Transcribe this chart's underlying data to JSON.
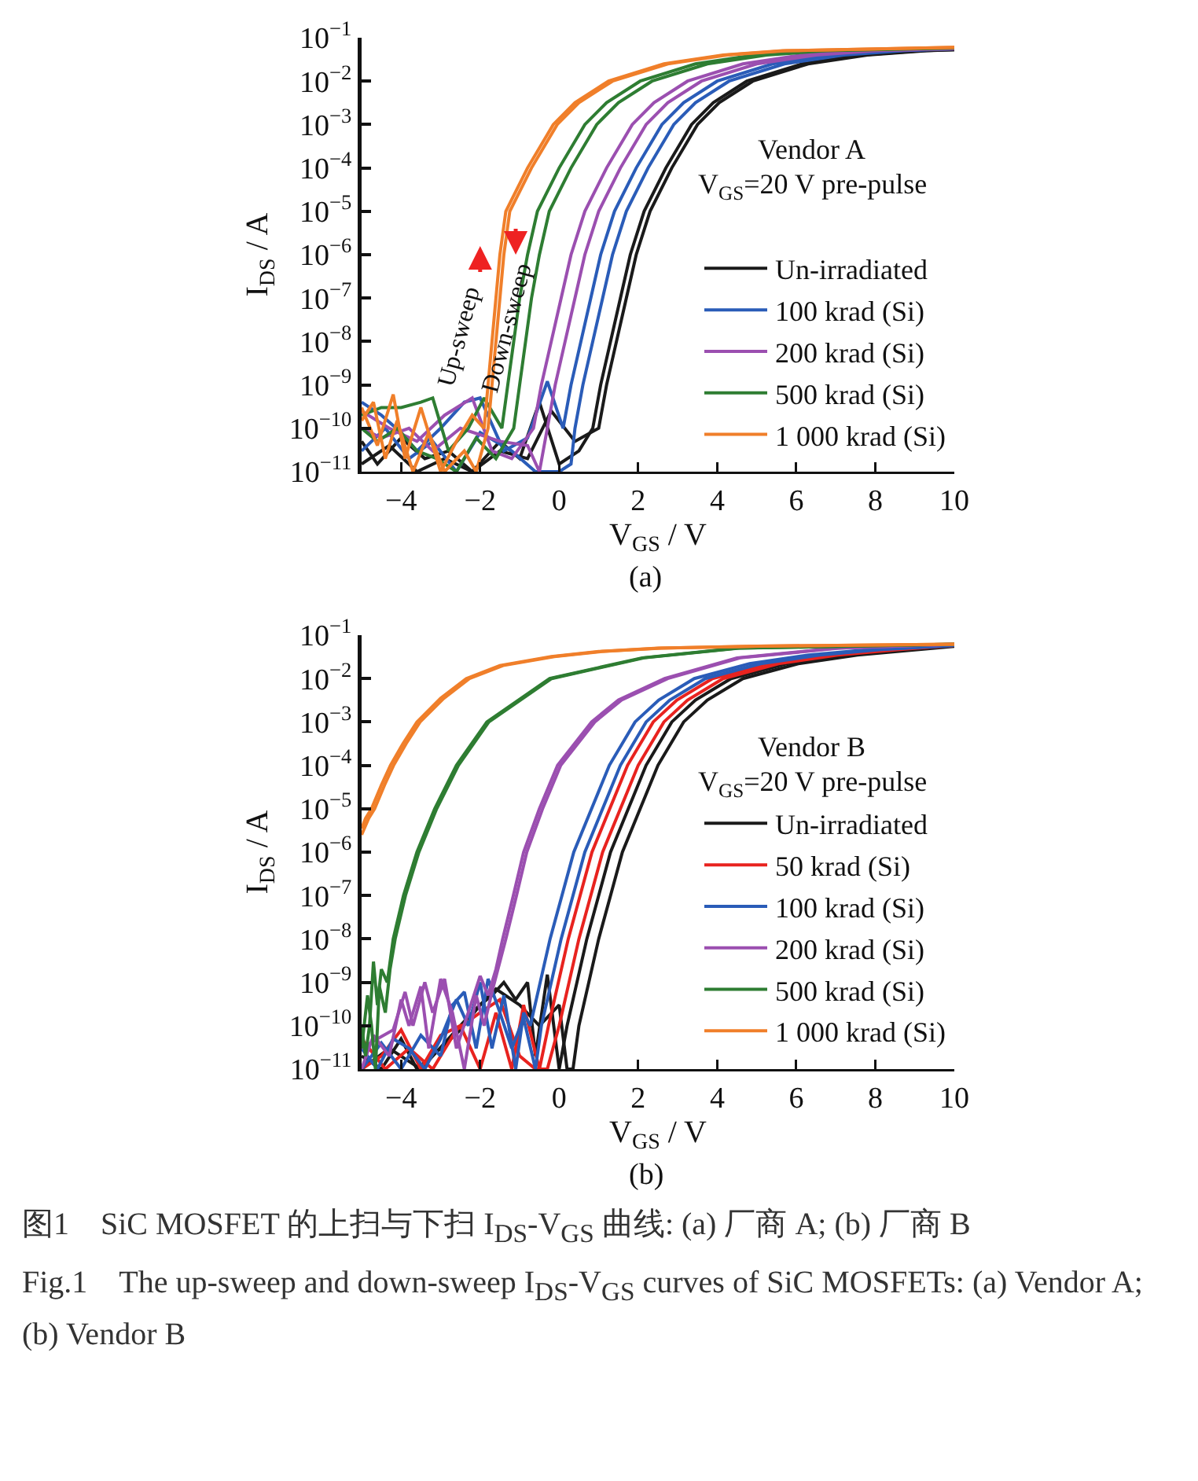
{
  "chart_data": [
    {
      "type": "line",
      "xlabel": "V$_{GS}$ / V",
      "ylabel": "I$_{DS}$ / A",
      "log": "y",
      "legend": "bottom right",
      "xlim": [
        -5,
        10
      ],
      "ylim": [
        1e-11,
        0.1
      ],
      "xticks": [
        -4,
        -2,
        0,
        2,
        4,
        6,
        8,
        10
      ],
      "yticks": [
        {
          "value": 1e-11,
          "label": "10$^{−11}$"
        },
        {
          "value": 1e-10,
          "label": "10$^{−10}$"
        },
        {
          "value": 1e-09,
          "label": "10$^{−9}$"
        },
        {
          "value": 1e-08,
          "label": "10$^{−8}$"
        },
        {
          "value": 1e-07,
          "label": "10$^{−7}$"
        },
        {
          "value": 1e-06,
          "label": "10$^{−6}$"
        },
        {
          "value": 1e-05,
          "label": "10$^{−5}$"
        },
        {
          "value": 0.0001,
          "label": "10$^{−4}$"
        },
        {
          "value": 0.001,
          "label": "10$^{−3}$"
        },
        {
          "value": 0.01,
          "label": "10$^{−2}$"
        },
        {
          "value": 0.1,
          "label": "10$^{−1}$"
        }
      ],
      "annotations": [
        "Vendor A",
        "V$_{GS}$=20 V pre-pulse",
        "(a)",
        "Up-sweep",
        "Down-sweep"
      ],
      "series": [
        {
          "name": "Un-irradiated",
          "color": "#1a1a1a",
          "x": [
            -5,
            -4.6,
            -4,
            -3.4,
            -2.8,
            -2.2,
            -1.5,
            -1,
            -0.5,
            0,
            0.5,
            0.85,
            1.05,
            1.3,
            1.55,
            1.8,
            2.15,
            2.7,
            3.35,
            3.9,
            4.75,
            6.15,
            7.65,
            9.15,
            10
          ],
          "values": [
            5e-11,
            1.5e-11,
            6e-11,
            2e-11,
            3e-11,
            1e-11,
            5e-11,
            2e-11,
            4e-10,
            1.5e-11,
            3e-11,
            1e-10,
            1e-09,
            1e-08,
            1e-07,
            1e-06,
            1e-05,
            0.0001,
            0.001,
            0.0032,
            0.01,
            0.025,
            0.04,
            0.05,
            0.053
          ]
        },
        {
          "color": "#1a1a1a",
          "x": [
            -5,
            -4.3,
            -3.6,
            -2.9,
            -2.2,
            -1.5,
            -0.8,
            -0.2,
            0.4,
            0.8,
            1,
            1.2,
            1.45,
            1.7,
            1.95,
            2.3,
            2.85,
            3.5,
            4.05,
            4.9,
            6.3,
            7.8,
            9.3,
            10
          ],
          "values": [
            1.5e-11,
            4e-11,
            1e-11,
            2e-11,
            1e-11,
            3e-11,
            2e-11,
            2.5e-10,
            5e-11,
            8e-11,
            1e-10,
            1e-09,
            1e-08,
            1e-07,
            1e-06,
            1e-05,
            0.0001,
            0.001,
            0.0032,
            0.01,
            0.025,
            0.04,
            0.05,
            0.053
          ]
        },
        {
          "name": "100 krad (Si)",
          "color": "#2a5cb8",
          "x": [
            -5,
            -4.5,
            -4,
            -3.6,
            -3,
            -2.4,
            -2,
            -1.4,
            -0.8,
            -0.3,
            0.1,
            0.3,
            0.55,
            0.8,
            1.05,
            1.4,
            1.95,
            2.6,
            3.15,
            4,
            5.4,
            6.9,
            8.4,
            10
          ],
          "values": [
            4e-10,
            2e-10,
            8e-11,
            3e-11,
            1e-10,
            4e-10,
            5e-10,
            3e-11,
            6e-11,
            1.2e-09,
            1e-10,
            1e-09,
            1e-08,
            1e-07,
            1e-06,
            1e-05,
            0.0001,
            0.001,
            0.0032,
            0.01,
            0.025,
            0.04,
            0.05,
            0.056
          ]
        },
        {
          "color": "#2a5cb8",
          "x": [
            -5,
            -4.4,
            -3.8,
            -3.2,
            -2.6,
            -2,
            -1.2,
            -0.6,
            0,
            0.3,
            0.4,
            0.6,
            0.85,
            1.1,
            1.35,
            1.7,
            2.25,
            2.9,
            3.45,
            4.3,
            5.7,
            7.2,
            8.7,
            10
          ],
          "values": [
            3e-11,
            1e-10,
            2e-11,
            5e-11,
            1e-11,
            8e-11,
            3e-11,
            1e-11,
            1e-11,
            1.5e-11,
            1e-10,
            1e-09,
            1e-08,
            1e-07,
            1e-06,
            1e-05,
            0.0001,
            0.001,
            0.0032,
            0.01,
            0.025,
            0.04,
            0.05,
            0.056
          ]
        },
        {
          "name": "200 krad (Si)",
          "color": "#9b4fb0",
          "x": [
            -5,
            -4.3,
            -3.6,
            -2.9,
            -2.2,
            -1.7,
            -1.2,
            -0.65,
            -0.45,
            -0.2,
            0.05,
            0.3,
            0.65,
            1.2,
            1.85,
            2.4,
            3.25,
            4.65,
            6.15,
            7.65,
            10
          ],
          "values": [
            2.5e-10,
            1e-10,
            5e-11,
            2e-10,
            5e-10,
            3e-11,
            2e-11,
            1e-10,
            1e-09,
            1e-08,
            1e-07,
            1e-06,
            1e-05,
            0.0001,
            0.001,
            0.0032,
            0.01,
            0.025,
            0.04,
            0.05,
            0.056
          ]
        },
        {
          "color": "#9b4fb0",
          "x": [
            -5,
            -4.5,
            -3.8,
            -3.2,
            -2.5,
            -1.5,
            -0.8,
            -0.5,
            -0.3,
            -0.1,
            0.15,
            0.4,
            0.65,
            1,
            1.55,
            2.2,
            2.75,
            3.6,
            5,
            6.5,
            8,
            10
          ],
          "values": [
            1e-10,
            6e-11,
            1e-10,
            3e-11,
            1e-10,
            5e-11,
            4e-11,
            1e-11,
            1e-10,
            1e-09,
            1e-08,
            1e-07,
            1e-06,
            1e-05,
            0.0001,
            0.001,
            0.0032,
            0.01,
            0.025,
            0.04,
            0.05,
            0.056
          ]
        },
        {
          "name": "500 krad (Si)",
          "color": "#2e7d32",
          "x": [
            -5,
            -4.5,
            -4,
            -3.5,
            -3.2,
            -2.8,
            -2.3,
            -1.9,
            -1.45,
            -1.3,
            -1.15,
            -1,
            -0.8,
            -0.55,
            0,
            0.65,
            1.2,
            2.05,
            3.45,
            4.95,
            6.45,
            10
          ],
          "values": [
            2e-10,
            3e-10,
            3e-10,
            4e-10,
            5e-10,
            3e-11,
            1e-10,
            5e-10,
            1e-10,
            1e-09,
            1e-08,
            1e-07,
            1e-06,
            1e-05,
            0.0001,
            0.001,
            0.0032,
            0.01,
            0.025,
            0.04,
            0.05,
            0.058
          ]
        },
        {
          "color": "#2e7d32",
          "x": [
            -5,
            -4.6,
            -4.1,
            -3.6,
            -3.1,
            -2.6,
            -2.1,
            -1.6,
            -1.15,
            -1,
            -0.85,
            -0.7,
            -0.5,
            -0.25,
            0.3,
            0.95,
            1.5,
            2.35,
            3.75,
            5.25,
            6.75,
            10
          ],
          "values": [
            1e-10,
            5e-11,
            1e-10,
            3e-11,
            2e-11,
            1e-11,
            6e-11,
            2e-11,
            1e-10,
            1e-09,
            1e-08,
            1e-07,
            1e-06,
            1e-05,
            0.0001,
            0.001,
            0.0032,
            0.01,
            0.025,
            0.04,
            0.05,
            0.058
          ]
        },
        {
          "name": "1 000 krad (Si)",
          "color": "#f07f2a",
          "x": [
            -5,
            -4.6,
            -4.2,
            -3.9,
            -3.5,
            -3,
            -2.6,
            -2.2,
            -1.9,
            -1.8,
            -1.7,
            -1.6,
            -1.5,
            -1.35,
            -0.8,
            -0.15,
            0.4,
            1.25,
            2.65,
            4.15,
            5.65,
            10
          ],
          "values": [
            3e-10,
            4e-11,
            6e-10,
            2e-11,
            3e-10,
            1e-11,
            5e-11,
            2e-10,
            1e-10,
            1e-09,
            1e-08,
            1e-07,
            1e-06,
            1e-05,
            0.0001,
            0.001,
            0.0032,
            0.01,
            0.025,
            0.04,
            0.05,
            0.06
          ]
        },
        {
          "color": "#f07f2a",
          "x": [
            -5,
            -4.7,
            -4.4,
            -4.1,
            -3.7,
            -3.3,
            -2.9,
            -2.4,
            -2.1,
            -1.8,
            -1.7,
            -1.6,
            -1.5,
            -1.4,
            -1.25,
            -0.7,
            -0.05,
            0.5,
            1.35,
            2.75,
            4.25,
            5.75,
            10
          ],
          "values": [
            1.5e-10,
            4e-10,
            2e-11,
            1.5e-10,
            1e-11,
            8e-11,
            1e-11,
            3e-11,
            1e-11,
            1e-10,
            1e-09,
            1e-08,
            1e-07,
            1e-06,
            1e-05,
            0.0001,
            0.001,
            0.0032,
            0.01,
            0.025,
            0.04,
            0.05,
            0.06
          ]
        }
      ]
    },
    {
      "type": "line",
      "xlabel": "V$_{GS}$ / V",
      "ylabel": "I$_{DS}$ / A",
      "log": "y",
      "legend": "bottom right",
      "xlim": [
        -5,
        10
      ],
      "ylim": [
        1e-11,
        0.1
      ],
      "xticks": [
        -4,
        -2,
        0,
        2,
        4,
        6,
        8,
        10
      ],
      "yticks": [
        {
          "value": 1e-11,
          "label": "10$^{−11}$"
        },
        {
          "value": 1e-10,
          "label": "10$^{−10}$"
        },
        {
          "value": 1e-09,
          "label": "10$^{−9}$"
        },
        {
          "value": 1e-08,
          "label": "10$^{−8}$"
        },
        {
          "value": 1e-07,
          "label": "10$^{−7}$"
        },
        {
          "value": 1e-06,
          "label": "10$^{−6}$"
        },
        {
          "value": 1e-05,
          "label": "10$^{−5}$"
        },
        {
          "value": 0.0001,
          "label": "10$^{−4}$"
        },
        {
          "value": 0.001,
          "label": "10$^{−3}$"
        },
        {
          "value": 0.01,
          "label": "10$^{−2}$"
        },
        {
          "value": 0.1,
          "label": "10$^{−1}$"
        }
      ],
      "annotations": [
        "Vendor B",
        "V$_{GS}$=20 V pre-pulse",
        "(b)",
        "图1　SiC MOSFET 的上扫与下扫 I$_{DS}$-V$_{GS}$ 曲线: (a) 厂商 A; (b) 厂商 B",
        "Fig.1　The up-sweep and down-sweep I$_{DS}$-V$_{GS}$ curves of SiC MOSFETs: (a) Vendor A; (b) Vendor B"
      ],
      "series": [
        {
          "name": "Un-irradiated",
          "color": "#1a1a1a",
          "x": [
            -5,
            -4.5,
            -4,
            -3.6,
            -3,
            -2.5,
            -2,
            -1.7,
            -1.4,
            -1.1,
            -0.8,
            -0.6,
            -0.3,
            0,
            0.2,
            0.45,
            0.7,
            1,
            1.3,
            1.75,
            2.2,
            2.85,
            3.45,
            4.35,
            5.75,
            7.25,
            8.75,
            10
          ],
          "values": [
            2e-11,
            1e-11,
            5e-11,
            1e-11,
            3e-11,
            8e-11,
            3e-10,
            5e-10,
            1e-09,
            4e-10,
            1e-09,
            2e-11,
            1.5e-09,
            1e-11,
            1e-10,
            1e-09,
            1e-08,
            1e-07,
            1e-06,
            1e-05,
            0.0001,
            0.001,
            0.0032,
            0.01,
            0.022,
            0.035,
            0.046,
            0.058
          ]
        },
        {
          "color": "#1a1a1a",
          "x": [
            -5,
            -4.3,
            -3.5,
            -2.8,
            -2.2,
            -1.6,
            -1,
            -0.5,
            0,
            0.2,
            0.35,
            0.5,
            0.75,
            1,
            1.3,
            1.6,
            2.05,
            2.5,
            3.15,
            3.75,
            4.65,
            6.05,
            7.55,
            9.05,
            10
          ],
          "values": [
            1e-11,
            3e-11,
            1e-11,
            5e-11,
            2e-10,
            7e-10,
            3e-10,
            1e-10,
            3e-10,
            1e-11,
            1e-11,
            1e-10,
            1e-09,
            1e-08,
            1e-07,
            1e-06,
            1e-05,
            0.0001,
            0.001,
            0.0032,
            0.01,
            0.022,
            0.035,
            0.046,
            0.055
          ]
        },
        {
          "name": "50 krad (Si)",
          "color": "#e8231f",
          "x": [
            -5,
            -4.5,
            -4,
            -3.5,
            -3,
            -2.5,
            -2,
            -1.6,
            -1.2,
            -0.9,
            -0.5,
            -0.27,
            -0.02,
            0.23,
            0.53,
            0.83,
            1.28,
            1.73,
            2.38,
            2.98,
            3.88,
            5.28,
            6.78,
            8.28,
            10
          ],
          "values": [
            1e-11,
            2e-11,
            8e-11,
            1e-11,
            6e-11,
            1e-10,
            1e-11,
            2e-10,
            1e-11,
            3e-10,
            1e-11,
            1e-10,
            1e-09,
            1e-08,
            1e-07,
            1e-06,
            1e-05,
            0.0001,
            0.001,
            0.0032,
            0.01,
            0.022,
            0.035,
            0.046,
            0.058
          ]
        },
        {
          "color": "#e8231f",
          "x": [
            -5,
            -4.4,
            -3.8,
            -3.2,
            -2.6,
            -2,
            -1.5,
            -1,
            -0.6,
            -0.3,
            0,
            0.25,
            0.5,
            0.8,
            1.1,
            1.55,
            2,
            2.65,
            3.25,
            4.15,
            5.55,
            7.05,
            8.55,
            10
          ],
          "values": [
            5e-11,
            1e-11,
            3e-11,
            1e-11,
            8e-11,
            2e-10,
            4e-10,
            2e-11,
            1e-11,
            1e-11,
            1e-10,
            1e-09,
            1e-08,
            1e-07,
            1e-06,
            1e-05,
            0.0001,
            0.001,
            0.0032,
            0.01,
            0.022,
            0.035,
            0.046,
            0.058
          ]
        },
        {
          "name": "100 krad (Si)",
          "color": "#2a5cb8",
          "x": [
            -5,
            -4.6,
            -4.2,
            -3.8,
            -3.4,
            -3,
            -2.6,
            -2.3,
            -2,
            -1.7,
            -1.4,
            -1.1,
            -0.9,
            -0.73,
            -0.48,
            -0.23,
            0.07,
            0.37,
            0.82,
            1.27,
            1.92,
            2.52,
            3.42,
            4.82,
            6.32,
            7.82,
            10
          ],
          "values": [
            3e-11,
            1e-11,
            5e-11,
            3e-11,
            1e-11,
            5e-11,
            4e-10,
            1e-10,
            1e-09,
            3e-11,
            5e-10,
            1e-11,
            2e-10,
            1e-10,
            1e-09,
            1e-08,
            1e-07,
            1e-06,
            1e-05,
            0.0001,
            0.001,
            0.0032,
            0.01,
            0.022,
            0.035,
            0.046,
            0.058
          ]
        },
        {
          "color": "#2a5cb8",
          "x": [
            -5,
            -4.5,
            -4,
            -3.5,
            -3,
            -2.7,
            -2.4,
            -2.1,
            -1.8,
            -1.5,
            -1.2,
            -0.9,
            -0.6,
            -0.45,
            -0.2,
            0.05,
            0.35,
            0.65,
            1.1,
            1.55,
            2.2,
            2.8,
            3.7,
            5.1,
            6.6,
            8.1,
            10
          ],
          "values": [
            1e-11,
            4e-11,
            1e-11,
            6e-11,
            2e-11,
            3e-10,
            6e-10,
            3e-11,
            1.2e-09,
            2e-10,
            3e-11,
            1.5e-10,
            1e-11,
            1e-10,
            1e-09,
            1e-08,
            1e-07,
            1e-06,
            1e-05,
            0.0001,
            0.001,
            0.0032,
            0.01,
            0.022,
            0.035,
            0.046,
            0.058
          ]
        },
        {
          "name": "200 krad (Si)",
          "color": "#9b4fb0",
          "x": [
            -5,
            -4.6,
            -4.2,
            -3.9,
            -3.7,
            -3.4,
            -3.2,
            -2.9,
            -2.6,
            -2.3,
            -2,
            -1.8,
            -1.6,
            -1.43,
            -1.16,
            -0.9,
            -0.5,
            -0.04,
            0.82,
            1.5,
            2.67,
            4.5,
            7,
            10
          ],
          "values": [
            3e-11,
            5e-11,
            8e-11,
            6e-10,
            1e-10,
            1e-09,
            2e-10,
            1.2e-09,
            3e-11,
            2e-10,
            1.4e-09,
            5e-10,
            2e-09,
            1e-08,
            1e-07,
            1e-06,
            1e-05,
            0.0001,
            0.001,
            0.0032,
            0.01,
            0.03,
            0.05,
            0.062
          ]
        },
        {
          "color": "#9b4fb0",
          "x": [
            -5,
            -4.7,
            -4.3,
            -4,
            -3.8,
            -3.5,
            -3.3,
            -3,
            -2.7,
            -2.4,
            -2.1,
            -1.9,
            -1.7,
            -1.35,
            -1.08,
            -0.82,
            -0.42,
            0.04,
            0.9,
            1.58,
            2.75,
            4.58,
            7.08,
            10
          ],
          "values": [
            1e-11,
            6e-11,
            2e-11,
            4e-10,
            1e-10,
            8e-10,
            3e-11,
            1.2e-09,
            2e-10,
            1e-11,
            5e-10,
            1e-10,
            6e-10,
            1e-08,
            1e-07,
            1e-06,
            1e-05,
            0.0001,
            0.001,
            0.0032,
            0.01,
            0.03,
            0.05,
            0.062
          ]
        },
        {
          "name": "500 krad (Si)",
          "color": "#2e7d32",
          "x": [
            -5,
            -4.9,
            -4.8,
            -4.7,
            -4.6,
            -4.5,
            -4.35,
            -4.2,
            -3.94,
            -3.6,
            -3.15,
            -2.6,
            -1.83,
            -0.24,
            2.1,
            4.5,
            10
          ],
          "values": [
            1e-10,
            2e-11,
            1e-10,
            3e-09,
            3e-10,
            2e-09,
            1e-09,
            1e-08,
            1e-07,
            1e-06,
            1e-05,
            0.0001,
            0.001,
            0.01,
            0.03,
            0.05,
            0.062
          ]
        },
        {
          "color": "#2e7d32",
          "x": [
            -5,
            -4.85,
            -4.75,
            -4.65,
            -4.55,
            -4.4,
            -4.28,
            -4.15,
            -3.89,
            -3.55,
            -3.1,
            -2.55,
            -1.78,
            -0.19,
            2.15,
            4.55,
            10
          ],
          "values": [
            3e-11,
            5e-10,
            1e-10,
            1e-11,
            8e-10,
            2e-10,
            2e-09,
            1e-08,
            1e-07,
            1e-06,
            1e-05,
            0.0001,
            0.001,
            0.01,
            0.03,
            0.05,
            0.062
          ]
        },
        {
          "name": "1 000 krad (Si)",
          "color": "#f07f2a",
          "x": [
            -5,
            -4.9,
            -4.75,
            -4.5,
            -4.27,
            -3.95,
            -3.6,
            -3,
            -2.35,
            -1.5,
            -0.2,
            1,
            2.5,
            5,
            10
          ],
          "values": [
            3.5e-06,
            6e-06,
            1e-05,
            3.5e-05,
            0.0001,
            0.00032,
            0.001,
            0.0035,
            0.01,
            0.02,
            0.032,
            0.042,
            0.05,
            0.056,
            0.062
          ]
        },
        {
          "color": "#f07f2a",
          "x": [
            -5,
            -4.82,
            -4.67,
            -4.42,
            -4.19,
            -3.87,
            -3.52,
            -2.92,
            -2.27,
            -1.42,
            -0.12,
            1.08,
            2.58,
            5.08,
            10
          ],
          "values": [
            2.5e-06,
            6e-06,
            1e-05,
            3.5e-05,
            0.0001,
            0.00032,
            0.001,
            0.0035,
            0.01,
            0.02,
            0.032,
            0.042,
            0.05,
            0.056,
            0.062
          ]
        }
      ]
    }
  ]
}
